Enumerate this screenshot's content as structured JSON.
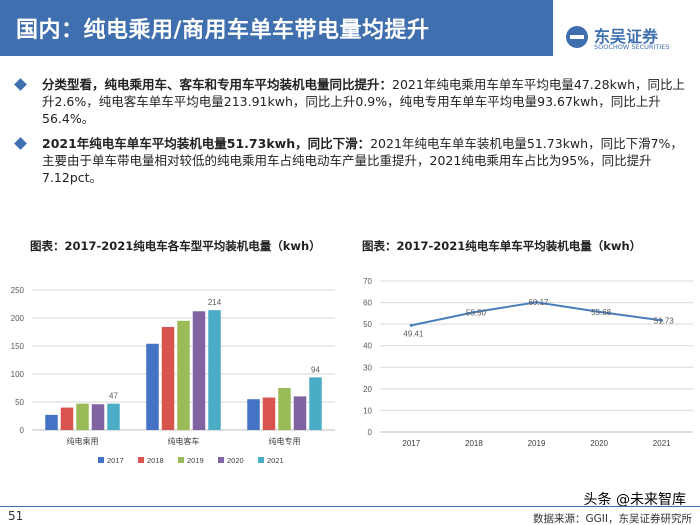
{
  "header": {
    "title": "国内：纯电乘用/商用车单车带电量均提升",
    "logo_cn": "东吴证券",
    "logo_en": "SOOCHOW SECURITIES"
  },
  "bullets": [
    {
      "lead": "分类型看，纯电乘用车、客车和专用车平均装机电量同比提升：",
      "body": "2021年纯电乘用车单车平均电量47.28kwh，同比上升2.6%，纯电客车单车平均电量213.91kwh，同比上升0.9%，纯电专用车单车平均电量93.67kwh，同比上升56.4%。"
    },
    {
      "lead": "2021年纯电车单车平均装机电量51.73kwh，同比下滑：",
      "body": "2021年纯电车单车装机电量51.73kwh，同比下滑7%，主要由于单车带电量相对较低的纯电乘用车占纯电动车产量比重提升，2021纯电乘用车占比为95%，同比提升7.12pct。"
    }
  ],
  "chart_data": [
    {
      "type": "bar",
      "title": "图表：2017-2021纯电车各车型平均装机电量（kwh）",
      "categories": [
        "纯电乘用",
        "纯电客车",
        "纯电专用"
      ],
      "series": [
        {
          "name": "2017",
          "color": "#4472c4",
          "values": [
            27,
            154,
            55
          ]
        },
        {
          "name": "2018",
          "color": "#d9534f",
          "values": [
            40,
            184,
            58
          ]
        },
        {
          "name": "2019",
          "color": "#9bbb59",
          "values": [
            47,
            195,
            75
          ]
        },
        {
          "name": "2020",
          "color": "#8064a2",
          "values": [
            46,
            212,
            60
          ]
        },
        {
          "name": "2021",
          "color": "#4bacc6",
          "values": [
            47,
            214,
            94
          ]
        }
      ],
      "data_labels": [
        "47",
        "214",
        "94"
      ],
      "yticks": [
        "0",
        "50",
        "100",
        "150",
        "200",
        "250"
      ],
      "ylim": [
        0,
        250
      ],
      "legend": "bottom"
    },
    {
      "type": "line",
      "title": "图表：2017-2021纯电车单车平均装机电量（kwh）",
      "x": [
        "2017",
        "2018",
        "2019",
        "2020",
        "2021"
      ],
      "values": [
        49.41,
        55.5,
        60.17,
        55.68,
        51.73
      ],
      "labels": [
        "49.41",
        "55.50",
        "60.17",
        "55.68",
        "51.73"
      ],
      "yticks": [
        "0",
        "10",
        "20",
        "30",
        "40",
        "50",
        "60",
        "70"
      ],
      "ylim": [
        0,
        70
      ],
      "color": "#4a7ebb"
    }
  ],
  "footer": {
    "page": "51",
    "source": "数据来源：GGII，东吴证券研究所",
    "watermark": "头条 @未来智库"
  }
}
